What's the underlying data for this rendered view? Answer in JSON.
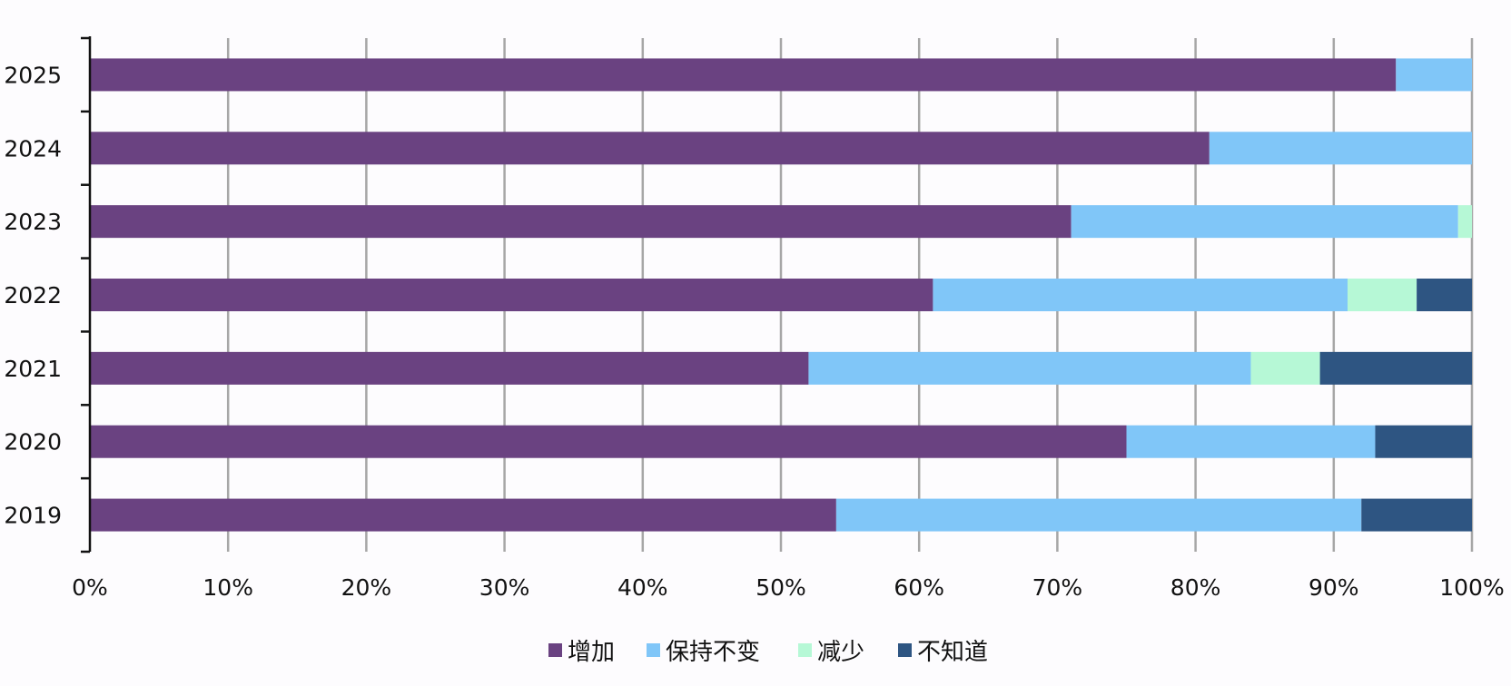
{
  "chart_data": {
    "type": "bar",
    "orientation": "horizontal",
    "stacked": "percent",
    "categories": [
      "2025",
      "2024",
      "2023",
      "2022",
      "2021",
      "2020",
      "2019"
    ],
    "series": [
      {
        "name": "增加",
        "color": "#6a4281",
        "values": [
          94.5,
          81,
          71,
          61,
          52,
          75,
          54
        ]
      },
      {
        "name": "保持不变",
        "color": "#80c6f8",
        "values": [
          5.5,
          19,
          28,
          30,
          32,
          18,
          38
        ]
      },
      {
        "name": "减少",
        "color": "#b6f8d6",
        "values": [
          0,
          0,
          1,
          5,
          5,
          0,
          0
        ]
      },
      {
        "name": "不知道",
        "color": "#2e5582",
        "values": [
          0,
          0,
          0,
          4,
          11,
          7,
          8
        ]
      }
    ],
    "x_ticks": [
      "0%",
      "10%",
      "20%",
      "30%",
      "40%",
      "50%",
      "60%",
      "70%",
      "80%",
      "90%",
      "100%"
    ],
    "xlim": [
      0,
      100
    ],
    "grid": "vertical",
    "legend_position": "bottom"
  }
}
